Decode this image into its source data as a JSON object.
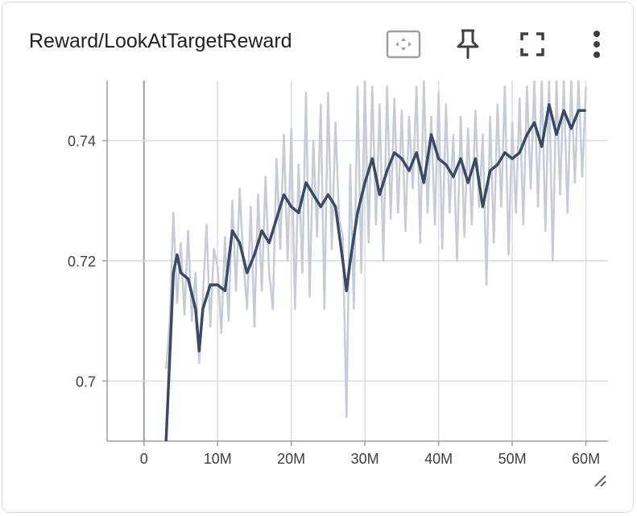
{
  "card": {
    "title": "Reward/LookAtTargetReward",
    "actions": [
      "fit-domain-icon",
      "pin-icon",
      "fullscreen-icon",
      "more-vert-icon"
    ]
  },
  "colors": {
    "smoothed_line": "#3b4a64",
    "raw_line": "#c5ccd8",
    "grid": "#dadce0",
    "axis": "#9e9e9e",
    "zero_line": "#9e9e9e"
  },
  "chart_data": {
    "type": "line",
    "title": "Reward/LookAtTargetReward",
    "xlabel": "",
    "ylabel": "",
    "xlim": [
      -5000000,
      63000000
    ],
    "ylim": [
      0.69,
      0.75
    ],
    "x_ticks": [
      0,
      10000000,
      20000000,
      30000000,
      40000000,
      50000000,
      60000000
    ],
    "x_tick_labels": [
      "0",
      "10M",
      "20M",
      "30M",
      "40M",
      "50M",
      "60M"
    ],
    "y_ticks": [
      0.7,
      0.72,
      0.74
    ],
    "y_tick_labels": [
      "0.7",
      "0.72",
      "0.74"
    ],
    "grid": true,
    "series": [
      {
        "role": "smoothed",
        "x": [
          3000000,
          3500000,
          4000000,
          4500000,
          5000000,
          6000000,
          7000000,
          7500000,
          8000000,
          9000000,
          10000000,
          11000000,
          12000000,
          13000000,
          14000000,
          15000000,
          16000000,
          17000000,
          18000000,
          19000000,
          20000000,
          21000000,
          22000000,
          23000000,
          24000000,
          25000000,
          26000000,
          27000000,
          27500000,
          28000000,
          29000000,
          30000000,
          31000000,
          32000000,
          33000000,
          34000000,
          35000000,
          36000000,
          37000000,
          38000000,
          39000000,
          40000000,
          41000000,
          42000000,
          43000000,
          44000000,
          45000000,
          46000000,
          47000000,
          48000000,
          49000000,
          50000000,
          51000000,
          52000000,
          53000000,
          54000000,
          55000000,
          56000000,
          57000000,
          58000000,
          59000000,
          60000000
        ],
        "y": [
          0.69,
          0.704,
          0.718,
          0.721,
          0.718,
          0.717,
          0.712,
          0.705,
          0.712,
          0.716,
          0.716,
          0.715,
          0.725,
          0.723,
          0.718,
          0.721,
          0.725,
          0.723,
          0.727,
          0.731,
          0.729,
          0.728,
          0.733,
          0.731,
          0.729,
          0.731,
          0.729,
          0.72,
          0.715,
          0.72,
          0.728,
          0.733,
          0.737,
          0.731,
          0.735,
          0.738,
          0.737,
          0.735,
          0.738,
          0.733,
          0.741,
          0.737,
          0.736,
          0.734,
          0.737,
          0.733,
          0.737,
          0.729,
          0.735,
          0.736,
          0.738,
          0.737,
          0.738,
          0.741,
          0.743,
          0.739,
          0.746,
          0.741,
          0.745,
          0.742,
          0.745,
          0.745
        ]
      },
      {
        "role": "raw",
        "x": [
          3000000,
          3500000,
          4000000,
          4500000,
          5000000,
          5500000,
          6000000,
          6500000,
          7000000,
          7500000,
          8000000,
          8500000,
          9000000,
          9500000,
          10000000,
          10500000,
          11000000,
          11500000,
          12000000,
          12500000,
          13000000,
          13500000,
          14000000,
          14500000,
          15000000,
          15500000,
          16000000,
          16500000,
          17000000,
          17500000,
          18000000,
          18500000,
          19000000,
          19500000,
          20000000,
          20500000,
          21000000,
          21500000,
          22000000,
          22500000,
          23000000,
          23500000,
          24000000,
          24500000,
          25000000,
          25500000,
          26000000,
          26500000,
          27000000,
          27500000,
          28000000,
          28500000,
          29000000,
          29500000,
          30000000,
          30500000,
          31000000,
          31500000,
          32000000,
          32500000,
          33000000,
          33500000,
          34000000,
          34500000,
          35000000,
          35500000,
          36000000,
          36500000,
          37000000,
          37500000,
          38000000,
          38500000,
          39000000,
          39500000,
          40000000,
          40500000,
          41000000,
          41500000,
          42000000,
          42500000,
          43000000,
          43500000,
          44000000,
          44500000,
          45000000,
          45500000,
          46000000,
          46500000,
          47000000,
          47500000,
          48000000,
          48500000,
          49000000,
          49500000,
          50000000,
          50500000,
          51000000,
          51500000,
          52000000,
          52500000,
          53000000,
          53500000,
          54000000,
          54500000,
          55000000,
          55500000,
          56000000,
          56500000,
          57000000,
          57500000,
          58000000,
          58500000,
          59000000,
          59500000,
          60000000
        ],
        "y": [
          0.702,
          0.71,
          0.728,
          0.713,
          0.723,
          0.711,
          0.725,
          0.71,
          0.718,
          0.703,
          0.714,
          0.726,
          0.709,
          0.722,
          0.719,
          0.708,
          0.724,
          0.71,
          0.73,
          0.715,
          0.732,
          0.72,
          0.712,
          0.729,
          0.709,
          0.731,
          0.715,
          0.734,
          0.718,
          0.712,
          0.737,
          0.722,
          0.741,
          0.72,
          0.742,
          0.712,
          0.736,
          0.718,
          0.748,
          0.714,
          0.74,
          0.724,
          0.746,
          0.712,
          0.748,
          0.722,
          0.743,
          0.727,
          0.724,
          0.694,
          0.736,
          0.712,
          0.749,
          0.718,
          0.75,
          0.723,
          0.749,
          0.726,
          0.746,
          0.72,
          0.749,
          0.727,
          0.747,
          0.728,
          0.745,
          0.725,
          0.744,
          0.732,
          0.749,
          0.723,
          0.75,
          0.728,
          0.744,
          0.726,
          0.748,
          0.722,
          0.746,
          0.728,
          0.741,
          0.72,
          0.744,
          0.724,
          0.742,
          0.726,
          0.745,
          0.729,
          0.741,
          0.716,
          0.744,
          0.723,
          0.746,
          0.729,
          0.749,
          0.721,
          0.743,
          0.728,
          0.747,
          0.726,
          0.749,
          0.732,
          0.75,
          0.729,
          0.75,
          0.725,
          0.75,
          0.72,
          0.75,
          0.731,
          0.75,
          0.728,
          0.75,
          0.733,
          0.75,
          0.734,
          0.749
        ]
      }
    ]
  }
}
